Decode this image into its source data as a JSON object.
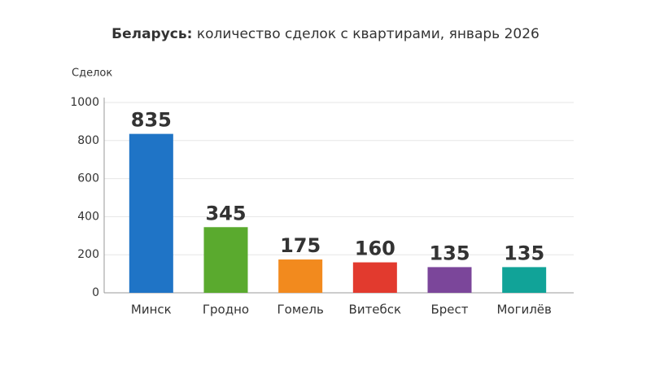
{
  "chart_data": {
    "type": "bar",
    "title": [
      "Беларусь:",
      "количество сделок с квартирами, январь 2026"
    ],
    "y_label": "Сделок",
    "categories": [
      "Минск",
      "Гродно",
      "Гомель",
      "Витебск",
      "Брест",
      "Могилёв"
    ],
    "values": [
      835,
      345,
      175,
      160,
      135,
      135
    ],
    "colors": [
      "#1f74c6",
      "#5aaa2e",
      "#f28a1e",
      "#e23a2e",
      "#7b469a",
      "#11a398"
    ],
    "ylim": [
      0,
      1000
    ],
    "yticks": [
      0,
      200,
      400,
      600,
      800,
      1000
    ],
    "grid": true
  }
}
